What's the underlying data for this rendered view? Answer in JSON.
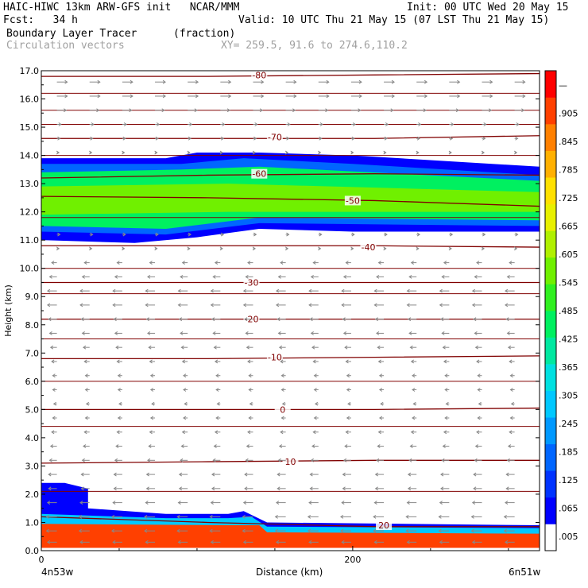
{
  "header": {
    "model": "HAIC-HIWC 13km ARW-GFS init",
    "org": "NCAR/MMM",
    "init": "Init: 00 UTC Wed 20 May 15",
    "fcst_label": "Fcst:",
    "fcst_value": "34 h",
    "valid": "Valid: 10 UTC Thu 21 May 15 (07 LST Thu 21 May 15)",
    "field": "Boundary Layer Tracer",
    "field_units": "(fraction)",
    "overlay": "Circulation vectors",
    "xy": "XY= 259.5, 91.6 to 274.6,110.2"
  },
  "x_endpoints": {
    "left": "4n53w",
    "right": "6n51w"
  },
  "colorbar": {
    "labels": [
      ".005",
      ".065",
      ".125",
      ".185",
      ".245",
      ".305",
      ".365",
      ".425",
      ".485",
      ".545",
      ".605",
      ".665",
      ".725",
      ".785",
      ".845",
      ".905",
      "—"
    ],
    "colors": [
      "#ffffff",
      "#0000ff",
      "#0033ff",
      "#0066ff",
      "#0099ff",
      "#00c8ff",
      "#00e0e0",
      "#00e8a0",
      "#00f060",
      "#30f020",
      "#70f000",
      "#b0f000",
      "#e8f000",
      "#ffe000",
      "#ffb000",
      "#ff8000",
      "#ff4000",
      "#ff0000"
    ]
  },
  "chart_data": {
    "type": "heatmap",
    "title": "Boundary Layer Tracer",
    "xlabel": "Distance (km)",
    "ylabel": "Height (km)",
    "xlim": [
      0,
      320
    ],
    "ylim": [
      0,
      17
    ],
    "x_ticks": [
      {
        "v": 0,
        "label": "0"
      },
      {
        "v": 200,
        "label": "200"
      }
    ],
    "y_ticks": [
      {
        "v": 0,
        "label": "0.0"
      },
      {
        "v": 1,
        "label": "1.0"
      },
      {
        "v": 2,
        "label": "2.0"
      },
      {
        "v": 3,
        "label": "3.0"
      },
      {
        "v": 4,
        "label": "4.0"
      },
      {
        "v": 5,
        "label": "5.0"
      },
      {
        "v": 6,
        "label": "6.0"
      },
      {
        "v": 7,
        "label": "7.0"
      },
      {
        "v": 8,
        "label": "8.0"
      },
      {
        "v": 9,
        "label": "9.0"
      },
      {
        "v": 10,
        "label": "10.0"
      },
      {
        "v": 11,
        "label": "11.0"
      },
      {
        "v": 12,
        "label": "12.0"
      },
      {
        "v": 13,
        "label": "13.0"
      },
      {
        "v": 14,
        "label": "14.0"
      },
      {
        "v": 15,
        "label": "15.0"
      },
      {
        "v": 16,
        "label": "16.0"
      },
      {
        "v": 17,
        "label": "17.0"
      }
    ],
    "tracer_layers": [
      {
        "name": "upper_outer",
        "value": 0.05,
        "bottom": [
          [
            0,
            11.0
          ],
          [
            60,
            10.9
          ],
          [
            100,
            11.1
          ],
          [
            140,
            11.4
          ],
          [
            200,
            11.3
          ],
          [
            320,
            11.3
          ]
        ],
        "top": [
          [
            0,
            13.9
          ],
          [
            80,
            13.9
          ],
          [
            100,
            14.1
          ],
          [
            140,
            14.1
          ],
          [
            200,
            14.0
          ],
          [
            320,
            13.6
          ]
        ]
      },
      {
        "name": "upper_mid",
        "value": 0.18,
        "bottom": [
          [
            0,
            11.3
          ],
          [
            80,
            11.2
          ],
          [
            140,
            11.6
          ],
          [
            320,
            11.5
          ]
        ],
        "top": [
          [
            0,
            13.7
          ],
          [
            90,
            13.7
          ],
          [
            130,
            13.9
          ],
          [
            200,
            13.7
          ],
          [
            320,
            13.3
          ]
        ]
      },
      {
        "name": "upper_core",
        "value": 0.45,
        "bottom": [
          [
            0,
            11.5
          ],
          [
            80,
            11.4
          ],
          [
            140,
            11.8
          ],
          [
            320,
            11.7
          ]
        ],
        "top": [
          [
            0,
            13.4
          ],
          [
            90,
            13.5
          ],
          [
            140,
            13.6
          ],
          [
            320,
            13.1
          ]
        ]
      },
      {
        "name": "upper_center",
        "value": 0.6,
        "bottom": [
          [
            0,
            11.9
          ],
          [
            120,
            12.0
          ],
          [
            320,
            12.0
          ]
        ],
        "top": [
          [
            0,
            12.9
          ],
          [
            120,
            13.0
          ],
          [
            320,
            12.7
          ]
        ]
      },
      {
        "name": "bl_outer",
        "value": 0.05,
        "bottom": [
          [
            0,
            0.1
          ],
          [
            320,
            0.1
          ]
        ],
        "top": [
          [
            0,
            2.4
          ],
          [
            15,
            2.4
          ],
          [
            30,
            2.2
          ],
          [
            30,
            1.5
          ],
          [
            80,
            1.3
          ],
          [
            120,
            1.3
          ],
          [
            130,
            1.4
          ],
          [
            145,
            1.0
          ],
          [
            320,
            0.9
          ]
        ]
      },
      {
        "name": "bl_mid",
        "value": 0.25,
        "bottom": [
          [
            0,
            0.1
          ],
          [
            320,
            0.1
          ]
        ],
        "top": [
          [
            0,
            1.3
          ],
          [
            80,
            1.15
          ],
          [
            120,
            1.15
          ],
          [
            135,
            1.2
          ],
          [
            145,
            0.85
          ],
          [
            320,
            0.8
          ]
        ]
      },
      {
        "name": "bl_core",
        "value": 0.95,
        "bottom": [
          [
            0,
            0.1
          ],
          [
            320,
            0.1
          ]
        ],
        "top": [
          [
            0,
            0.95
          ],
          [
            120,
            0.9
          ],
          [
            140,
            0.9
          ],
          [
            145,
            0.65
          ],
          [
            320,
            0.6
          ]
        ]
      }
    ],
    "isotherms": [
      {
        "label": "-80",
        "y": [
          16.8,
          16.8,
          16.85,
          16.9
        ],
        "lx": 140,
        "ly": 16.85
      },
      {
        "label": "-70",
        "y": [
          14.6,
          14.6,
          14.6,
          14.7
        ],
        "lx": 150,
        "ly": 14.65
      },
      {
        "label": "-60",
        "y": [
          13.2,
          13.3,
          13.35,
          13.3
        ],
        "lx": 140,
        "ly": 13.35
      },
      {
        "label": "-50",
        "y": [
          12.55,
          12.5,
          12.4,
          12.2
        ],
        "lx": 200,
        "ly": 12.4
      },
      {
        "label": "-40",
        "y": [
          10.8,
          10.8,
          10.8,
          10.75
        ],
        "lx": 210,
        "ly": 10.75
      },
      {
        "label": "-30",
        "y": [
          9.5,
          9.5,
          9.5,
          9.5
        ],
        "lx": 135,
        "ly": 9.5
      },
      {
        "label": "-20",
        "y": [
          8.2,
          8.2,
          8.2,
          8.2
        ],
        "lx": 135,
        "ly": 8.2
      },
      {
        "label": "-10",
        "y": [
          6.8,
          6.8,
          6.85,
          6.9
        ],
        "lx": 150,
        "ly": 6.85
      },
      {
        "label": "0",
        "y": [
          5.0,
          5.0,
          5.0,
          5.05
        ],
        "lx": 155,
        "ly": 5.0
      },
      {
        "label": "10",
        "y": [
          3.1,
          3.15,
          3.2,
          3.2
        ],
        "lx": 160,
        "ly": 3.15
      },
      {
        "label": "20",
        "y": [
          1.2,
          1.0,
          0.85,
          0.85
        ],
        "lx": 220,
        "ly": 0.9
      }
    ],
    "extra_contours": [
      16.2,
      15.6,
      15.1,
      14.0,
      11.8,
      10.0,
      9.1,
      7.5,
      6.0,
      4.4,
      2.1
    ],
    "vectors": {
      "x_spacing": 21,
      "rows": [
        {
          "y": 16.6,
          "u": 1.0,
          "w": 0.0
        },
        {
          "y": 16.1,
          "u": 1.0,
          "w": 0.0
        },
        {
          "y": 15.6,
          "u": 0.9,
          "w": 0.0
        },
        {
          "y": 15.1,
          "u": 0.4,
          "w": 0.0
        },
        {
          "y": 14.6,
          "u": 0.3,
          "w": 0.0
        },
        {
          "y": 14.1,
          "u": 0.2,
          "w": 0.0
        },
        {
          "y": 11.2,
          "u": 0.3,
          "w": 0.0
        },
        {
          "y": 10.7,
          "u": 0.2,
          "w": 0.0
        },
        {
          "y": 10.2,
          "u": -0.5,
          "w": 0.0
        },
        {
          "y": 9.7,
          "u": -0.7,
          "w": 0.0
        },
        {
          "y": 9.2,
          "u": -0.9,
          "w": 0.0
        },
        {
          "y": 8.7,
          "u": -0.9,
          "w": 0.0
        },
        {
          "y": 8.2,
          "u": -0.8,
          "w": 0.0
        },
        {
          "y": 7.7,
          "u": -0.7,
          "w": 0.0
        },
        {
          "y": 7.2,
          "u": -0.6,
          "w": 0.0
        },
        {
          "y": 6.7,
          "u": -0.5,
          "w": 0.0
        },
        {
          "y": 6.2,
          "u": -0.4,
          "w": 0.0
        },
        {
          "y": 5.7,
          "u": -0.4,
          "w": 0.0
        },
        {
          "y": 5.2,
          "u": -0.3,
          "w": 0.0
        },
        {
          "y": 4.7,
          "u": -0.4,
          "w": 0.0
        },
        {
          "y": 4.2,
          "u": -0.5,
          "w": 0.0
        },
        {
          "y": 3.7,
          "u": -0.6,
          "w": 0.0
        },
        {
          "y": 3.2,
          "u": -0.7,
          "w": 0.0
        },
        {
          "y": 2.7,
          "u": -0.8,
          "w": 0.0
        },
        {
          "y": 2.2,
          "u": -0.8,
          "w": 0.0
        },
        {
          "y": 1.7,
          "u": -0.9,
          "w": 0.0
        },
        {
          "y": 1.2,
          "u": -1.0,
          "w": 0.0
        },
        {
          "y": 0.7,
          "u": -1.0,
          "w": 0.0
        },
        {
          "y": 0.3,
          "u": -0.9,
          "w": 0.0
        }
      ]
    }
  }
}
